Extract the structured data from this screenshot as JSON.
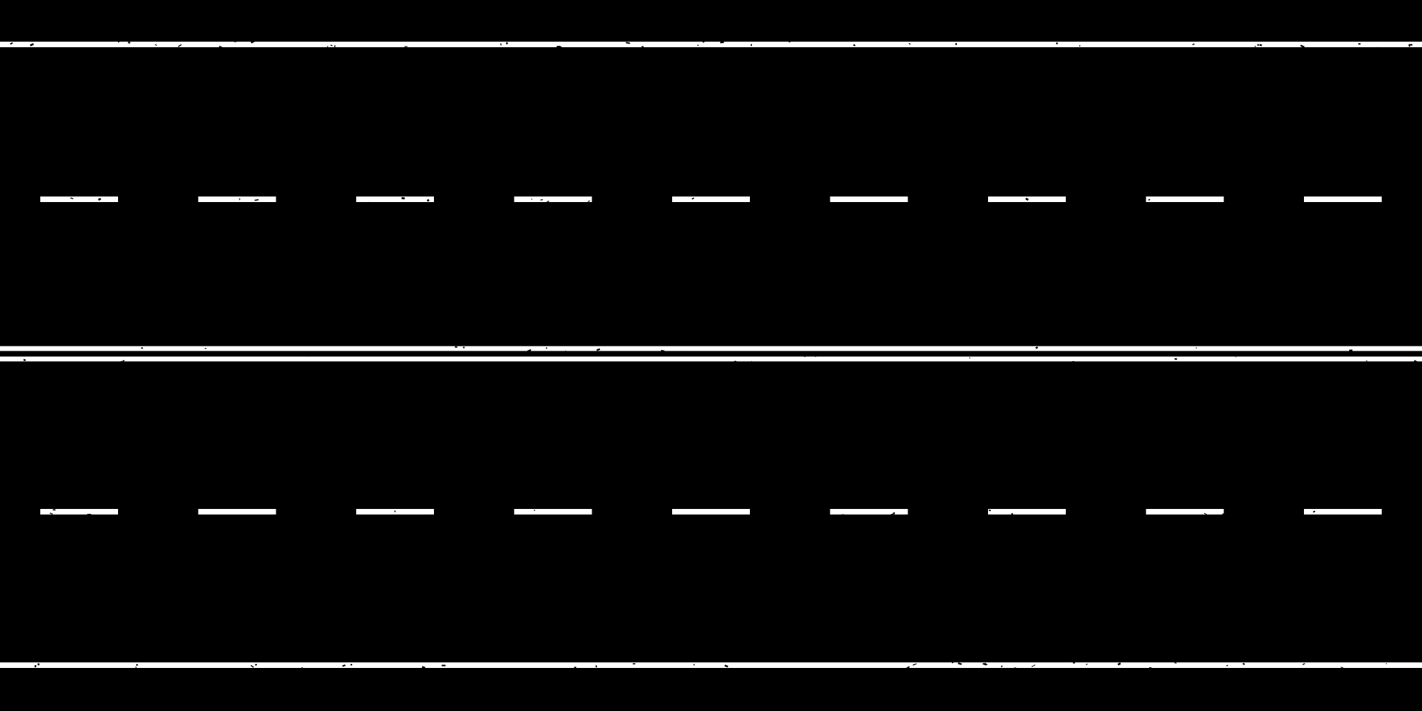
{
  "road_markings": {
    "background_color": "#000000",
    "paint_color": "#ffffff",
    "layout": [
      {
        "kind": "solid"
      },
      {
        "kind": "dashed",
        "dash_count": 9
      },
      {
        "kind": "double-solid"
      },
      {
        "kind": "dashed",
        "dash_count": 9
      },
      {
        "kind": "solid"
      }
    ]
  }
}
